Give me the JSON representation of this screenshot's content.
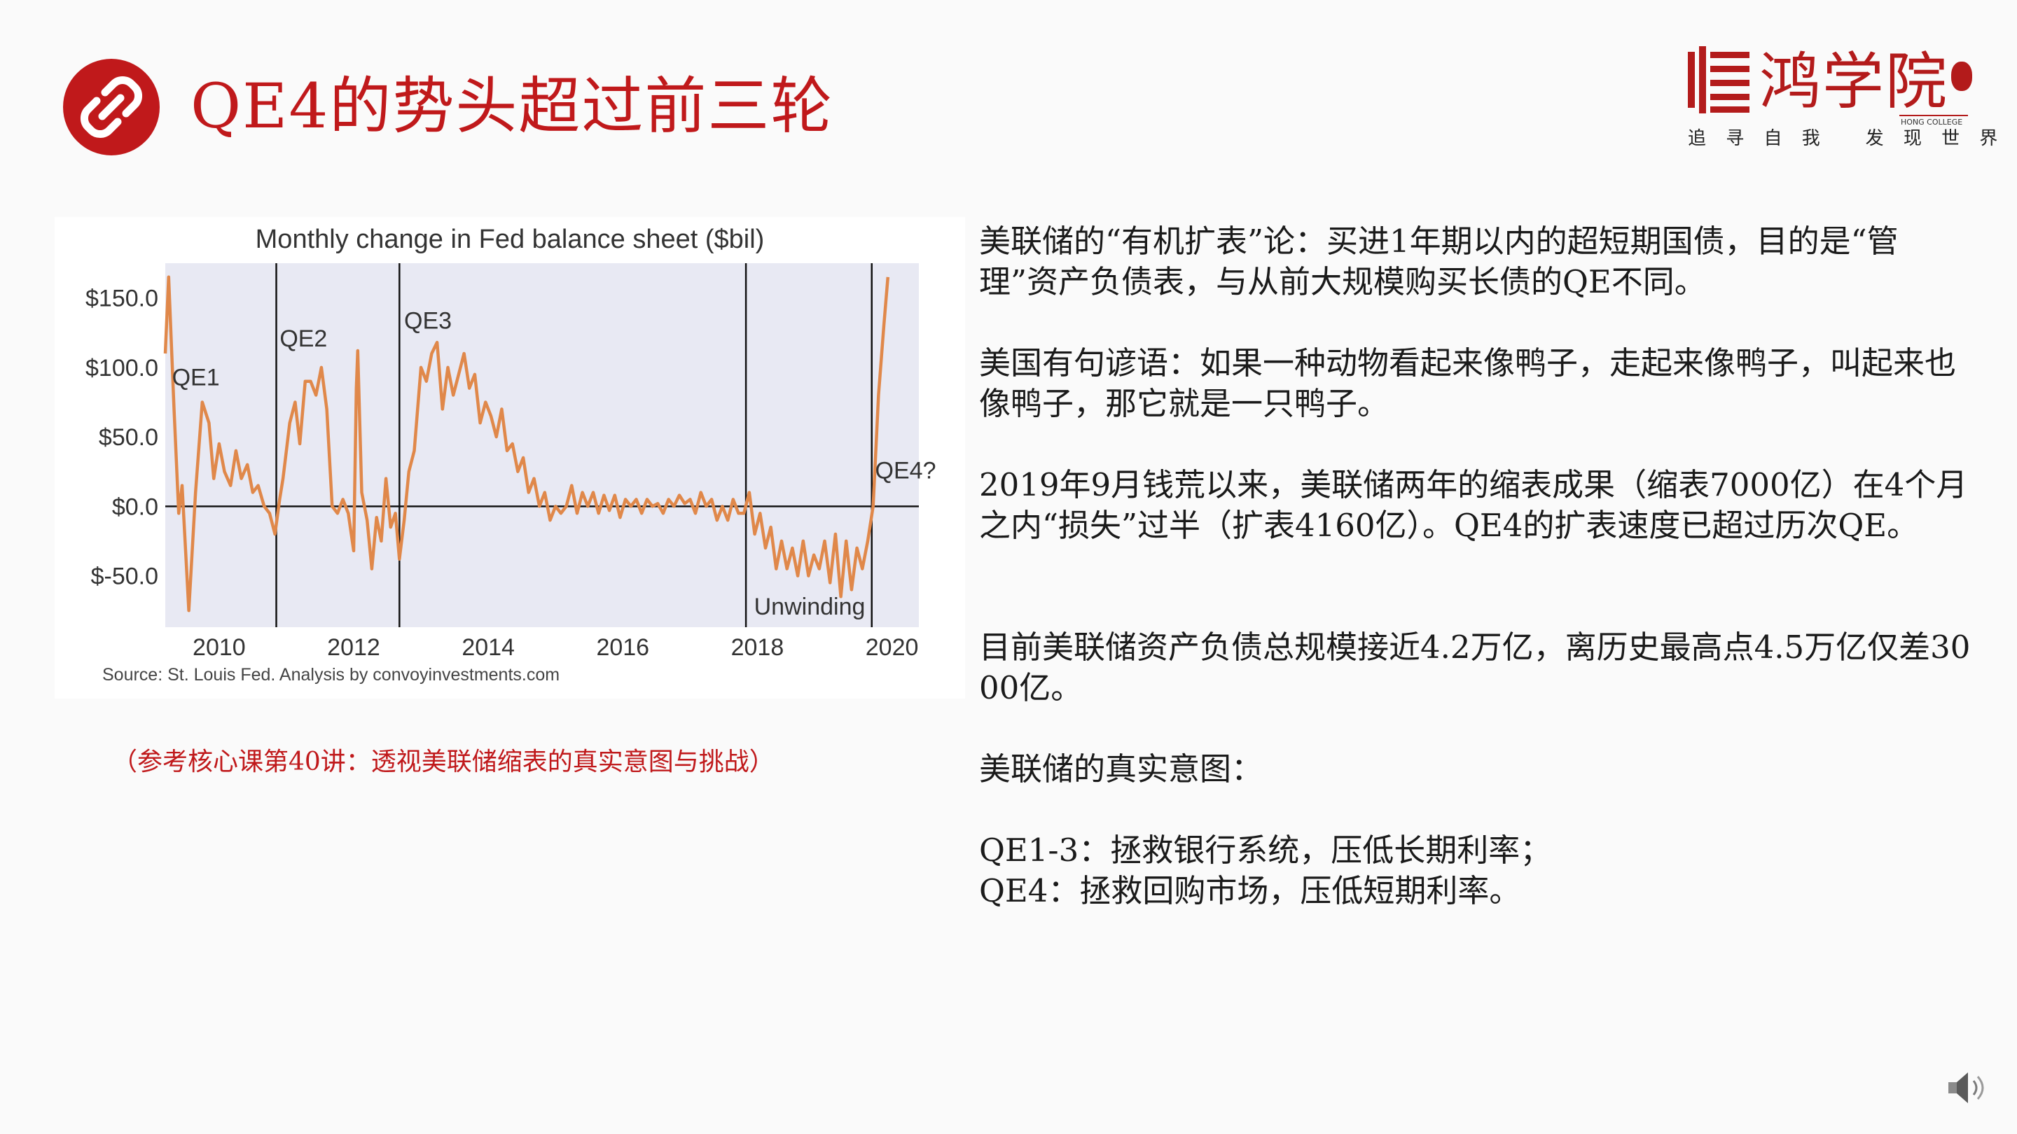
{
  "slide": {
    "title": "QE4的势头超过前三轮",
    "title_icon": "link-icon",
    "accent_color": "#c0191b"
  },
  "logo": {
    "name": "鸿学院",
    "english": "HONG COLLEGE",
    "tagline": "追 寻 自 我   发 现 世 界",
    "color": "#b31b1b"
  },
  "chart_data": {
    "type": "line",
    "title": "Monthly change in Fed balance sheet ($bil)",
    "source": "Source: St. Louis Fed. Analysis by convoyinvestments.com",
    "ylabel": "",
    "xlabel": "",
    "y_ticks": [
      "$150.0",
      "$100.0",
      "$50.0",
      "$0.0",
      "$-50.0"
    ],
    "y_tick_values": [
      150,
      100,
      50,
      0,
      -50
    ],
    "x_ticks": [
      "2010",
      "2012",
      "2014",
      "2016",
      "2018",
      "2020"
    ],
    "x_tick_values": [
      2010,
      2012,
      2014,
      2016,
      2018,
      2020
    ],
    "xlim": [
      2009.2,
      2020.4
    ],
    "ylim": [
      -87,
      175
    ],
    "line_color": "#e0884a",
    "annotations": [
      {
        "label": "QE1",
        "x": 2009.3,
        "y": 87
      },
      {
        "label": "QE2",
        "x": 2010.9,
        "y": 115
      },
      {
        "label": "QE3",
        "x": 2012.75,
        "y": 128
      },
      {
        "label": "QE4?",
        "x": 2019.75,
        "y": 20
      },
      {
        "label": "Unwinding",
        "x": 2017.95,
        "y": -78
      }
    ],
    "vlines": [
      {
        "x": 2010.85
      },
      {
        "x": 2012.68
      },
      {
        "x": 2017.83
      },
      {
        "x": 2019.7
      }
    ],
    "series": [
      {
        "name": "Monthly change",
        "points": [
          [
            2009.2,
            110
          ],
          [
            2009.25,
            165
          ],
          [
            2009.33,
            70
          ],
          [
            2009.4,
            -5
          ],
          [
            2009.45,
            15
          ],
          [
            2009.55,
            -75
          ],
          [
            2009.65,
            10
          ],
          [
            2009.75,
            75
          ],
          [
            2009.85,
            60
          ],
          [
            2009.92,
            20
          ],
          [
            2010.0,
            45
          ],
          [
            2010.08,
            25
          ],
          [
            2010.17,
            15
          ],
          [
            2010.25,
            40
          ],
          [
            2010.33,
            20
          ],
          [
            2010.42,
            30
          ],
          [
            2010.5,
            10
          ],
          [
            2010.58,
            15
          ],
          [
            2010.67,
            0
          ],
          [
            2010.75,
            -5
          ],
          [
            2010.83,
            -20
          ],
          [
            2010.9,
            5
          ],
          [
            2010.95,
            20
          ],
          [
            2011.05,
            60
          ],
          [
            2011.13,
            75
          ],
          [
            2011.2,
            45
          ],
          [
            2011.28,
            90
          ],
          [
            2011.36,
            90
          ],
          [
            2011.44,
            80
          ],
          [
            2011.52,
            100
          ],
          [
            2011.6,
            70
          ],
          [
            2011.68,
            0
          ],
          [
            2011.76,
            -5
          ],
          [
            2011.84,
            5
          ],
          [
            2011.92,
            -5
          ],
          [
            2012.0,
            -32
          ],
          [
            2012.04,
            85
          ],
          [
            2012.06,
            112
          ],
          [
            2012.12,
            10
          ],
          [
            2012.2,
            -10
          ],
          [
            2012.27,
            -45
          ],
          [
            2012.34,
            -8
          ],
          [
            2012.41,
            -25
          ],
          [
            2012.48,
            20
          ],
          [
            2012.55,
            -15
          ],
          [
            2012.62,
            -5
          ],
          [
            2012.68,
            -38
          ],
          [
            2012.75,
            -10
          ],
          [
            2012.82,
            25
          ],
          [
            2012.9,
            40
          ],
          [
            2013.0,
            100
          ],
          [
            2013.08,
            90
          ],
          [
            2013.16,
            110
          ],
          [
            2013.24,
            118
          ],
          [
            2013.32,
            70
          ],
          [
            2013.4,
            100
          ],
          [
            2013.48,
            80
          ],
          [
            2013.56,
            95
          ],
          [
            2013.64,
            110
          ],
          [
            2013.72,
            85
          ],
          [
            2013.8,
            95
          ],
          [
            2013.88,
            60
          ],
          [
            2013.96,
            75
          ],
          [
            2014.04,
            65
          ],
          [
            2014.12,
            50
          ],
          [
            2014.2,
            70
          ],
          [
            2014.28,
            40
          ],
          [
            2014.36,
            45
          ],
          [
            2014.44,
            25
          ],
          [
            2014.52,
            35
          ],
          [
            2014.6,
            10
          ],
          [
            2014.68,
            20
          ],
          [
            2014.76,
            0
          ],
          [
            2014.84,
            10
          ],
          [
            2014.92,
            -10
          ],
          [
            2015.0,
            0
          ],
          [
            2015.08,
            -5
          ],
          [
            2015.16,
            0
          ],
          [
            2015.24,
            15
          ],
          [
            2015.32,
            -5
          ],
          [
            2015.4,
            10
          ],
          [
            2015.48,
            0
          ],
          [
            2015.56,
            10
          ],
          [
            2015.64,
            -5
          ],
          [
            2015.72,
            8
          ],
          [
            2015.8,
            -3
          ],
          [
            2015.88,
            8
          ],
          [
            2015.96,
            -8
          ],
          [
            2016.04,
            5
          ],
          [
            2016.12,
            0
          ],
          [
            2016.2,
            5
          ],
          [
            2016.28,
            -5
          ],
          [
            2016.36,
            5
          ],
          [
            2016.44,
            0
          ],
          [
            2016.52,
            2
          ],
          [
            2016.6,
            -5
          ],
          [
            2016.68,
            5
          ],
          [
            2016.76,
            0
          ],
          [
            2016.84,
            8
          ],
          [
            2016.92,
            2
          ],
          [
            2017.0,
            5
          ],
          [
            2017.08,
            -5
          ],
          [
            2017.16,
            10
          ],
          [
            2017.24,
            0
          ],
          [
            2017.32,
            5
          ],
          [
            2017.4,
            -10
          ],
          [
            2017.48,
            0
          ],
          [
            2017.56,
            -10
          ],
          [
            2017.64,
            5
          ],
          [
            2017.72,
            -5
          ],
          [
            2017.8,
            -5
          ],
          [
            2017.88,
            10
          ],
          [
            2017.96,
            -20
          ],
          [
            2018.04,
            -5
          ],
          [
            2018.12,
            -30
          ],
          [
            2018.2,
            -15
          ],
          [
            2018.28,
            -45
          ],
          [
            2018.36,
            -25
          ],
          [
            2018.44,
            -45
          ],
          [
            2018.52,
            -30
          ],
          [
            2018.6,
            -50
          ],
          [
            2018.68,
            -25
          ],
          [
            2018.76,
            -50
          ],
          [
            2018.84,
            -35
          ],
          [
            2018.92,
            -45
          ],
          [
            2019.0,
            -25
          ],
          [
            2019.08,
            -55
          ],
          [
            2019.16,
            -20
          ],
          [
            2019.24,
            -65
          ],
          [
            2019.32,
            -25
          ],
          [
            2019.4,
            -60
          ],
          [
            2019.48,
            -30
          ],
          [
            2019.56,
            -45
          ],
          [
            2019.64,
            -25
          ],
          [
            2019.72,
            0
          ],
          [
            2019.8,
            80
          ],
          [
            2019.88,
            130
          ],
          [
            2019.94,
            165
          ]
        ]
      }
    ]
  },
  "caption": "（参考核心课第40讲：透视美联储缩表的真实意图与挑战）",
  "body": {
    "p1": "美联储的“有机扩表”论：买进1年期以内的超短期国债，目的是“管理”资产负债表，与从前大规模购买长债的QE不同。",
    "p2": "美国有句谚语：如果一种动物看起来像鸭子，走起来像鸭子，叫起来也像鸭子，那它就是一只鸭子。",
    "p3": "2019年9月钱荒以来，美联储两年的缩表成果（缩表7000亿）在4个月之内“损失”过半（扩表4160亿）。QE4的扩表速度已超过历次QE。",
    "p4": "目前美联储资产负债总规模接近4.2万亿，离历史最高点4.5万亿仅差3000亿。",
    "p5": "美联储的真实意图：",
    "p6a": "QE1-3：拯救银行系统，压低长期利率；",
    "p6b": "QE4：拯救回购市场，压低短期利率。"
  },
  "speaker_icon": "speaker-icon"
}
